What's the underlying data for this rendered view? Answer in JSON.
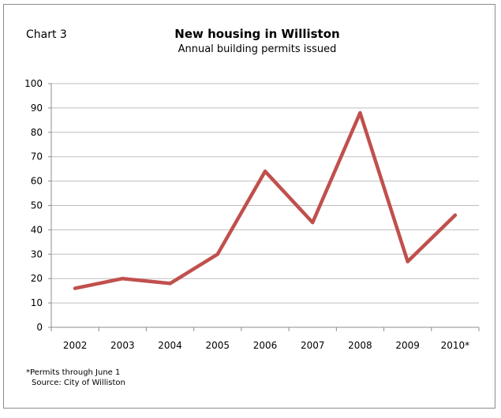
{
  "chart_number": "Chart 3",
  "footnote": "*Permits through June 1",
  "source": "Source: City of Williston",
  "colors": {
    "line": "#c0504d",
    "grid": "#bfbfbf",
    "axis": "#8c8c8c",
    "frame": "#8c8c8c"
  },
  "chart_data": {
    "type": "line",
    "title": "New housing in Williston",
    "subtitle": "Annual building permits issued",
    "xlabel": "",
    "ylabel": "",
    "categories": [
      "2002",
      "2003",
      "2004",
      "2005",
      "2006",
      "2007",
      "2008",
      "2009",
      "2010*"
    ],
    "series": [
      {
        "values": [
          16,
          20,
          18,
          30,
          64,
          43,
          88,
          27,
          46
        ]
      }
    ],
    "ylim": [
      0,
      100
    ],
    "yticks": [
      0,
      10,
      20,
      30,
      40,
      50,
      60,
      70,
      80,
      90,
      100
    ],
    "grid": true,
    "legend": "none"
  }
}
